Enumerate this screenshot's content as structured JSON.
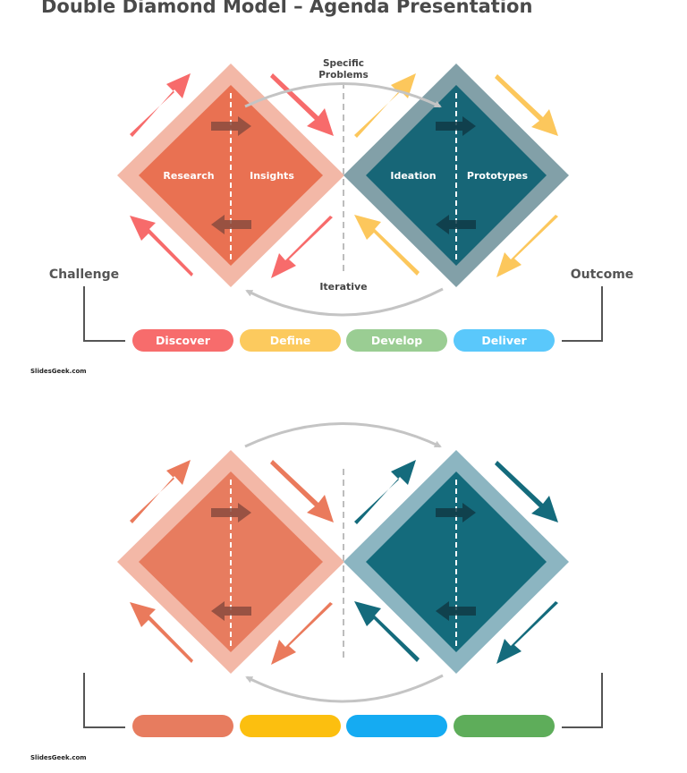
{
  "title": "Double Diamond Model – Agenda Presentation",
  "top_diagram": {
    "center_top_label": "Specific Problems",
    "center_bottom_label": "Iterative",
    "left_side_label": "Challenge",
    "right_side_label": "Outcome",
    "diamond_left": {
      "left_label": "Research",
      "right_label": "Insights"
    },
    "diamond_right": {
      "left_label": "Ideation",
      "right_label": "Prototypes"
    },
    "phases": [
      "Discover",
      "Define",
      "Develop",
      "Deliver"
    ],
    "colors": {
      "left_outer": "#f3b8a7",
      "left_inner": "#e97152",
      "right_outer": "#82a0a8",
      "right_inner": "#176677",
      "left_arrows": "#f76b6b",
      "right_arrows": "#fcc75c",
      "phase_discover": "#f76c6c",
      "phase_define": "#fcca5e",
      "phase_develop": "#9acd93",
      "phase_deliver": "#5ac8fb"
    }
  },
  "bottom_diagram": {
    "colors": {
      "left_outer": "#f3b8a7",
      "left_inner": "#e77c5f",
      "right_outer": "#8cb5c1",
      "right_inner": "#146b7c",
      "left_arrows": "#ea7a5c",
      "right_arrows": "#146b7c",
      "pill_1": "#e77c5f",
      "pill_2": "#fcbf0f",
      "pill_3": "#15abf2",
      "pill_4": "#5ead5a"
    }
  },
  "footer_top": "SlidesGeek.com",
  "footer_bottom": "SlidesGeek.com"
}
